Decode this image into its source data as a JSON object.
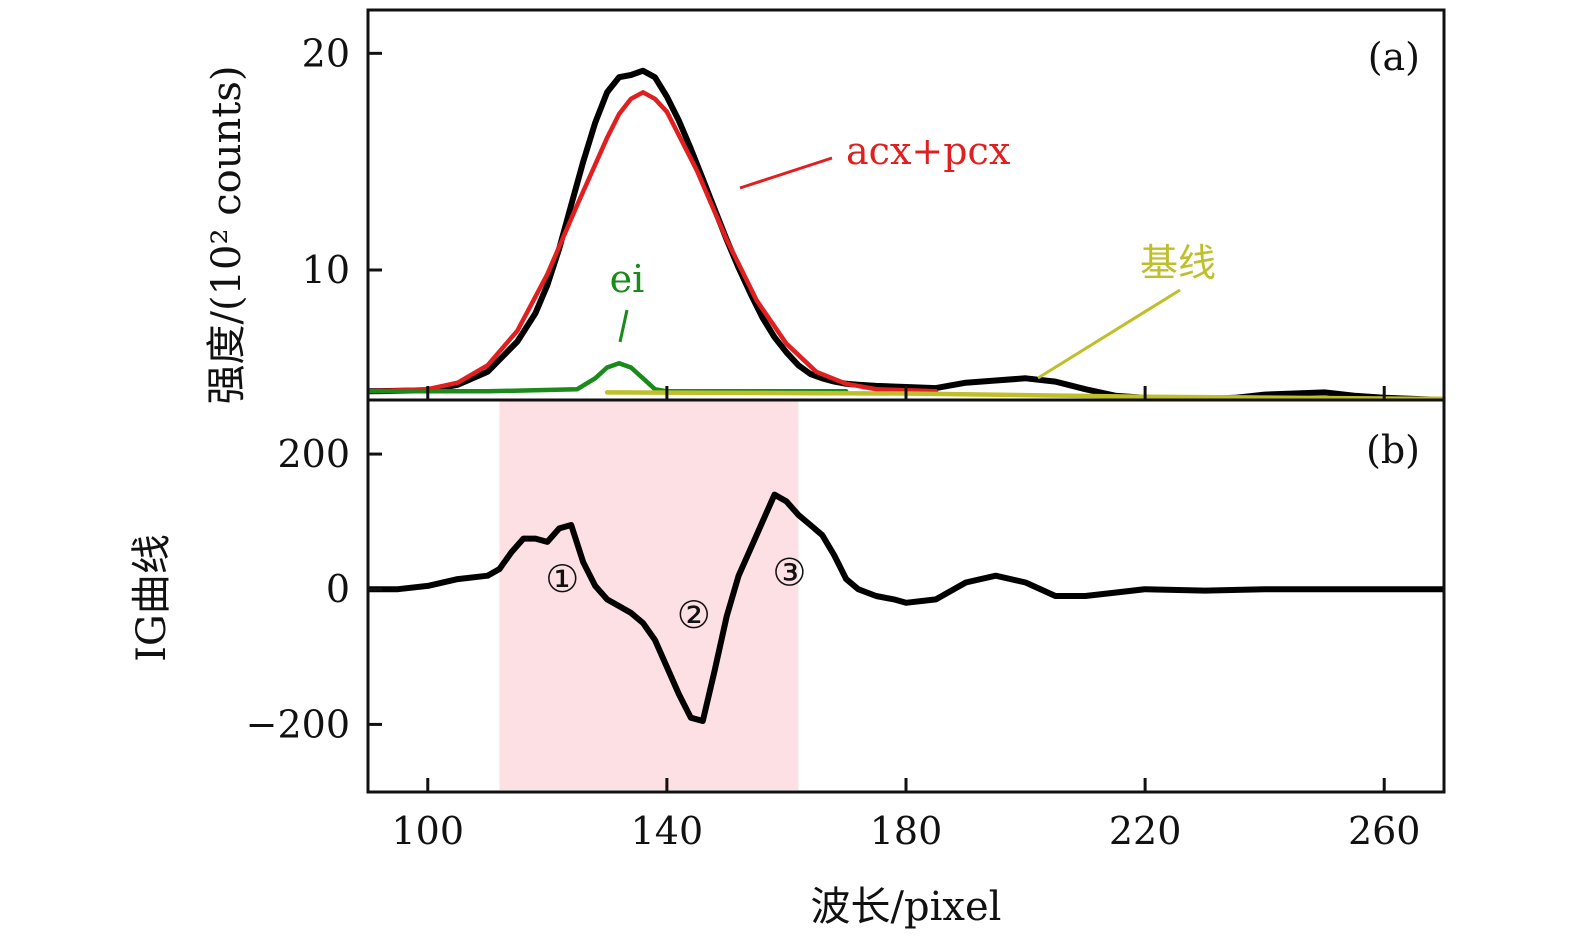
{
  "chart_data": [
    {
      "panel": "(a)",
      "type": "line",
      "ylabel": "强度/(10² counts)",
      "xlim": [
        90,
        270
      ],
      "ylim": [
        4,
        22
      ],
      "xticks": [
        100,
        140,
        180,
        220,
        260
      ],
      "yticks": [
        10,
        20
      ],
      "ytick_labels": [
        "10",
        "20"
      ],
      "series": [
        {
          "color": "#000000",
          "x": [
            90,
            100,
            105,
            110,
            115,
            118,
            120,
            122,
            124,
            126,
            128,
            130,
            132,
            134,
            136,
            138,
            140,
            142,
            144,
            146,
            148,
            150,
            152,
            154,
            156,
            158,
            160,
            162,
            164,
            166,
            168,
            170,
            172,
            175,
            180,
            185,
            190,
            195,
            200,
            205,
            210,
            215,
            220,
            225,
            230,
            235,
            240,
            245,
            250,
            255,
            260,
            265,
            270
          ],
          "y": [
            4.4,
            4.45,
            4.7,
            5.3,
            6.7,
            8.0,
            9.3,
            11.0,
            13.0,
            15.0,
            16.8,
            18.2,
            18.9,
            19.0,
            19.2,
            18.9,
            18.0,
            16.9,
            15.6,
            14.2,
            12.8,
            11.4,
            10.1,
            8.9,
            7.8,
            6.9,
            6.2,
            5.6,
            5.2,
            5.0,
            4.85,
            4.75,
            4.7,
            4.65,
            4.6,
            4.55,
            4.8,
            4.9,
            5.0,
            4.85,
            4.5,
            4.2,
            4.1,
            4.05,
            4.05,
            4.1,
            4.25,
            4.3,
            4.35,
            4.2,
            4.1,
            4.05,
            4.0
          ]
        },
        {
          "name": "acx+pcx",
          "color": "#e02020",
          "x": [
            90,
            100,
            105,
            110,
            115,
            120,
            125,
            130,
            132,
            134,
            136,
            138,
            140,
            145,
            150,
            155,
            160,
            165,
            170,
            175,
            180,
            185
          ],
          "y": [
            4.4,
            4.5,
            4.8,
            5.6,
            7.2,
            9.8,
            13.0,
            16.1,
            17.2,
            17.9,
            18.2,
            17.9,
            17.3,
            14.6,
            11.4,
            8.6,
            6.6,
            5.3,
            4.75,
            4.5,
            4.45,
            4.4
          ]
        },
        {
          "name": "ei",
          "color": "#1a8a1a",
          "x": [
            90,
            110,
            125,
            128,
            130,
            132,
            134,
            136,
            138,
            140,
            150,
            170
          ],
          "y": [
            4.4,
            4.4,
            4.5,
            5.0,
            5.5,
            5.7,
            5.5,
            5.0,
            4.5,
            4.4,
            4.4,
            4.4
          ]
        },
        {
          "name": "基线",
          "color": "#bfbf2a",
          "x": [
            130,
            180,
            220,
            270
          ],
          "y": [
            4.35,
            4.3,
            4.15,
            4.05
          ]
        }
      ]
    },
    {
      "panel": "(b)",
      "type": "line",
      "xlabel": "波长/pixel",
      "ylabel": "IG曲线",
      "xlim": [
        90,
        270
      ],
      "ylim": [
        -300,
        280
      ],
      "xticks": [
        100,
        140,
        180,
        220,
        260
      ],
      "xtick_labels": [
        "100",
        "140",
        "180",
        "220",
        "260"
      ],
      "yticks": [
        -200,
        0,
        200
      ],
      "ytick_labels": [
        "−200",
        "0",
        "200"
      ],
      "highlight": {
        "x_range": [
          112,
          162
        ],
        "color": "#fde0e3"
      },
      "annotations": [
        {
          "text": "①",
          "x": 122.5,
          "y": 15
        },
        {
          "text": "②",
          "x": 144.5,
          "y": -38
        },
        {
          "text": "③",
          "x": 160.5,
          "y": 25
        }
      ],
      "series": [
        {
          "color": "#000000",
          "x": [
            90,
            95,
            100,
            105,
            110,
            112,
            114,
            116,
            118,
            120,
            122,
            124,
            126,
            128,
            130,
            132,
            134,
            136,
            138,
            140,
            142,
            144,
            146,
            148,
            150,
            152,
            154,
            156,
            158,
            160,
            162,
            164,
            166,
            168,
            170,
            172,
            175,
            178,
            180,
            185,
            190,
            195,
            200,
            205,
            210,
            215,
            220,
            230,
            240,
            250,
            260,
            270
          ],
          "y": [
            0,
            0,
            5,
            15,
            20,
            30,
            55,
            75,
            75,
            70,
            90,
            95,
            40,
            5,
            -15,
            -25,
            -35,
            -50,
            -75,
            -115,
            -155,
            -190,
            -195,
            -120,
            -40,
            20,
            60,
            100,
            140,
            130,
            110,
            95,
            80,
            50,
            15,
            0,
            -10,
            -15,
            -20,
            -15,
            10,
            20,
            10,
            -10,
            -10,
            -5,
            0,
            -2,
            0,
            0,
            0,
            0
          ]
        }
      ]
    }
  ],
  "legend": {
    "acx_label": "acx+pcx",
    "ei_label": "ei",
    "baseline_label": "基线"
  }
}
